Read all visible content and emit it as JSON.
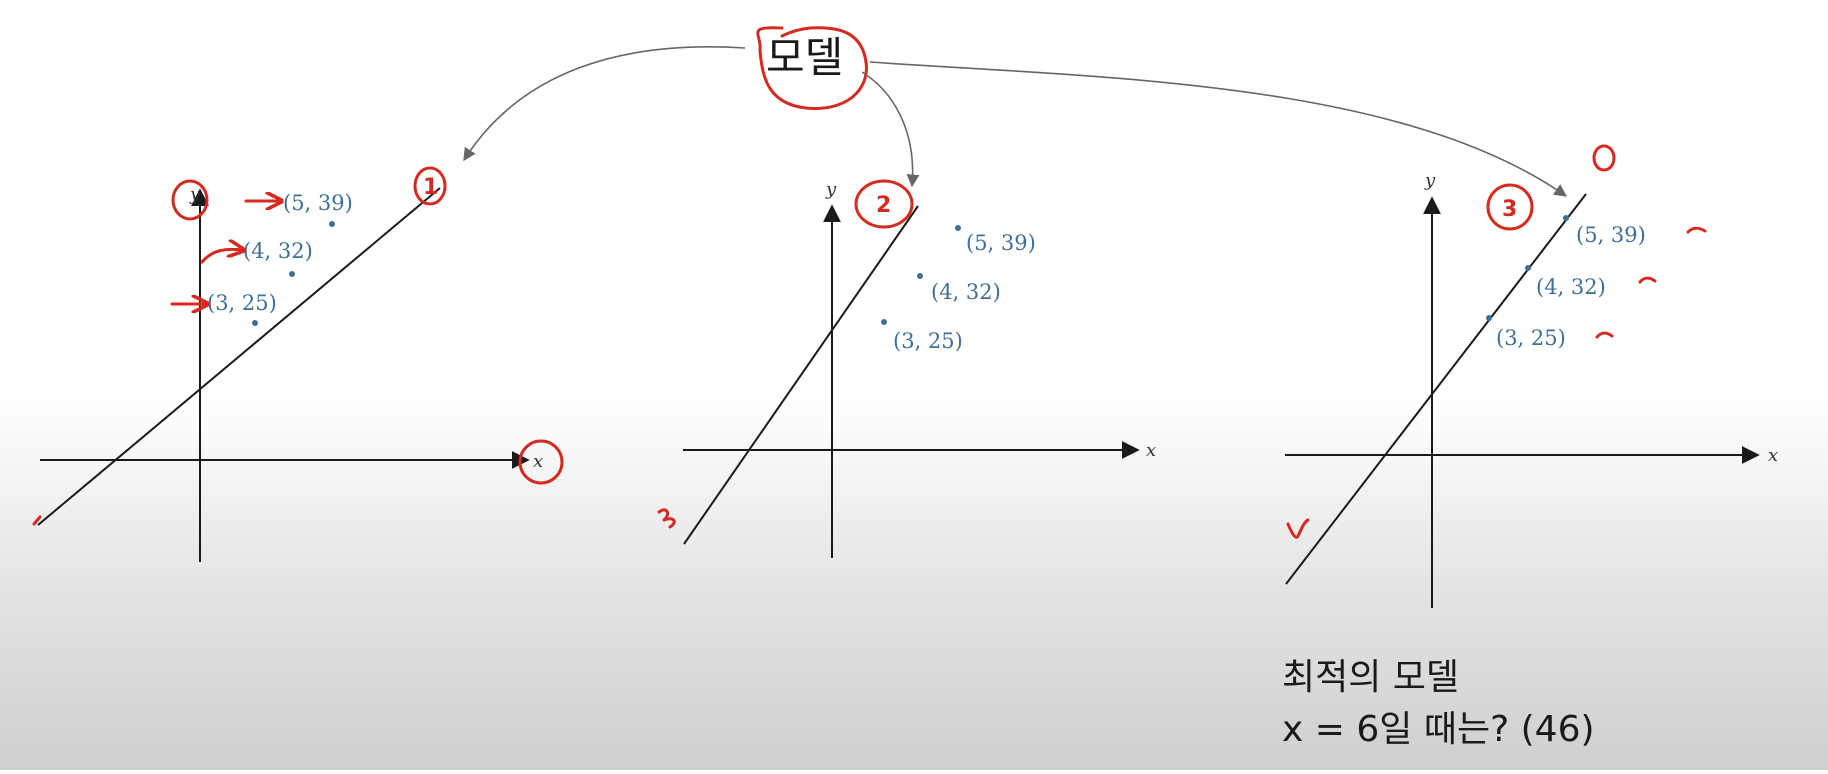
{
  "title": "모델",
  "caption": {
    "line1": "최적의 모델",
    "line2": "x = 6일 때는? (46)"
  },
  "colors": {
    "ink": "#1a1a1a",
    "points": "#3f6f94",
    "annotation": "#d42a22",
    "arrows": "#666666"
  },
  "chart_data": [
    {
      "type": "scatter",
      "id": "model-1",
      "xlabel": "x",
      "ylabel": "y",
      "points": [
        {
          "x": 3,
          "y": 25,
          "label": "(3, 25)"
        },
        {
          "x": 4,
          "y": 32,
          "label": "(4, 32)"
        },
        {
          "x": 5,
          "y": 39,
          "label": "(5, 39)"
        }
      ],
      "annotation": "1"
    },
    {
      "type": "scatter",
      "id": "model-2",
      "xlabel": "x",
      "ylabel": "y",
      "points": [
        {
          "x": 3,
          "y": 25,
          "label": "(3, 25)"
        },
        {
          "x": 4,
          "y": 32,
          "label": "(4, 32)"
        },
        {
          "x": 5,
          "y": 39,
          "label": "(5, 39)"
        }
      ],
      "annotation": "2"
    },
    {
      "type": "scatter",
      "id": "model-3",
      "xlabel": "x",
      "ylabel": "y",
      "points": [
        {
          "x": 3,
          "y": 25,
          "label": "(3, 25)"
        },
        {
          "x": 4,
          "y": 32,
          "label": "(4, 32)"
        },
        {
          "x": 5,
          "y": 39,
          "label": "(5, 39)"
        }
      ],
      "annotation": "3"
    }
  ]
}
